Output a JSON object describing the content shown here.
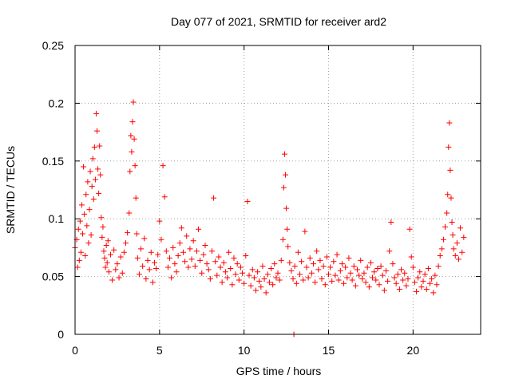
{
  "chart_data": {
    "type": "scatter",
    "title": "Day 077 of 2021, SRMTID for receiver ard2",
    "xlabel": "GPS time / hours",
    "ylabel": "SRMTID / TECUs",
    "xlim": [
      0,
      24
    ],
    "ylim": [
      0,
      0.25
    ],
    "xticks": [
      0,
      5,
      10,
      15,
      20
    ],
    "xtick_labels": [
      "0",
      "5",
      "10",
      "15",
      "20"
    ],
    "yticks": [
      0,
      0.05,
      0.1,
      0.15,
      0.2,
      0.25
    ],
    "ytick_labels": [
      "0",
      "0.05",
      "0.1",
      "0.15",
      "0.2",
      "0.25"
    ],
    "grid": true,
    "marker": "+",
    "series": [
      {
        "name": "SRMTID",
        "color": "#ff0000",
        "x": [
          0.0,
          0.1,
          0.15,
          0.2,
          0.25,
          0.3,
          0.35,
          0.4,
          0.45,
          0.5,
          0.55,
          0.6,
          0.65,
          0.7,
          0.75,
          0.8,
          0.85,
          0.9,
          0.95,
          1.0,
          1.05,
          1.1,
          1.15,
          1.2,
          1.25,
          1.3,
          1.35,
          1.4,
          1.45,
          1.5,
          1.55,
          1.6,
          1.65,
          1.7,
          1.75,
          1.8,
          1.85,
          1.9,
          1.95,
          2.0,
          2.1,
          2.2,
          2.3,
          2.4,
          2.5,
          2.6,
          2.7,
          2.8,
          2.9,
          3.0,
          3.1,
          3.2,
          3.25,
          3.3,
          3.35,
          3.4,
          3.45,
          3.5,
          3.55,
          3.6,
          3.65,
          3.7,
          3.8,
          3.9,
          4.0,
          4.1,
          4.2,
          4.3,
          4.4,
          4.5,
          4.6,
          4.7,
          4.8,
          4.9,
          5.0,
          5.1,
          5.2,
          5.3,
          5.4,
          5.5,
          5.6,
          5.7,
          5.8,
          5.9,
          6.0,
          6.1,
          6.2,
          6.3,
          6.4,
          6.5,
          6.6,
          6.7,
          6.8,
          6.9,
          7.0,
          7.1,
          7.2,
          7.3,
          7.4,
          7.5,
          7.6,
          7.7,
          7.8,
          7.9,
          8.0,
          8.1,
          8.2,
          8.3,
          8.4,
          8.5,
          8.6,
          8.7,
          8.8,
          8.9,
          9.0,
          9.1,
          9.2,
          9.3,
          9.4,
          9.5,
          9.6,
          9.7,
          9.8,
          9.9,
          10.0,
          10.1,
          10.2,
          10.3,
          10.4,
          10.5,
          10.6,
          10.7,
          10.8,
          10.9,
          11.0,
          11.1,
          11.2,
          11.3,
          11.4,
          11.5,
          11.6,
          11.7,
          11.8,
          11.9,
          12.0,
          12.1,
          12.2,
          12.3,
          12.35,
          12.4,
          12.45,
          12.5,
          12.55,
          12.6,
          12.7,
          12.8,
          12.9,
          13.0,
          13.1,
          13.2,
          13.3,
          13.4,
          13.5,
          13.6,
          13.7,
          13.8,
          13.9,
          14.0,
          14.1,
          14.2,
          14.3,
          14.4,
          14.5,
          14.6,
          14.7,
          14.8,
          14.9,
          15.0,
          15.1,
          15.2,
          15.3,
          15.4,
          15.5,
          15.6,
          15.7,
          15.8,
          15.9,
          16.0,
          16.1,
          16.2,
          16.3,
          16.4,
          16.5,
          16.6,
          16.7,
          16.8,
          16.9,
          17.0,
          17.1,
          17.2,
          17.3,
          17.4,
          17.5,
          17.6,
          17.7,
          17.8,
          17.9,
          18.0,
          18.1,
          18.2,
          18.3,
          18.4,
          18.5,
          18.6,
          18.7,
          18.8,
          18.9,
          19.0,
          19.1,
          19.2,
          19.3,
          19.4,
          19.5,
          19.6,
          19.7,
          19.8,
          19.9,
          20.0,
          20.1,
          20.2,
          20.3,
          20.4,
          20.5,
          20.6,
          20.7,
          20.8,
          20.9,
          21.0,
          21.1,
          21.2,
          21.3,
          21.4,
          21.5,
          21.6,
          21.7,
          21.8,
          21.9,
          22.0,
          22.05,
          22.1,
          22.15,
          22.2,
          22.25,
          22.3,
          22.35,
          22.4,
          22.5,
          22.6,
          22.7,
          22.8,
          22.9,
          23.0,
          12.95
        ],
        "y": [
          0.075,
          0.082,
          0.058,
          0.091,
          0.064,
          0.098,
          0.071,
          0.112,
          0.087,
          0.145,
          0.104,
          0.068,
          0.121,
          0.094,
          0.132,
          0.079,
          0.108,
          0.141,
          0.086,
          0.128,
          0.152,
          0.117,
          0.162,
          0.134,
          0.191,
          0.176,
          0.143,
          0.122,
          0.163,
          0.138,
          0.101,
          0.084,
          0.093,
          0.072,
          0.066,
          0.058,
          0.077,
          0.062,
          0.081,
          0.054,
          0.069,
          0.047,
          0.073,
          0.056,
          0.061,
          0.049,
          0.067,
          0.053,
          0.071,
          0.079,
          0.088,
          0.105,
          0.141,
          0.172,
          0.158,
          0.184,
          0.201,
          0.169,
          0.146,
          0.118,
          0.087,
          0.066,
          0.052,
          0.074,
          0.059,
          0.083,
          0.048,
          0.064,
          0.056,
          0.071,
          0.045,
          0.062,
          0.057,
          0.069,
          0.098,
          0.082,
          0.146,
          0.119,
          0.072,
          0.058,
          0.066,
          0.049,
          0.075,
          0.061,
          0.054,
          0.068,
          0.079,
          0.092,
          0.071,
          0.063,
          0.085,
          0.058,
          0.074,
          0.065,
          0.081,
          0.059,
          0.072,
          0.091,
          0.064,
          0.053,
          0.069,
          0.077,
          0.061,
          0.056,
          0.048,
          0.072,
          0.118,
          0.063,
          0.051,
          0.067,
          0.058,
          0.045,
          0.062,
          0.054,
          0.049,
          0.071,
          0.057,
          0.043,
          0.066,
          0.052,
          0.061,
          0.047,
          0.058,
          0.053,
          0.044,
          0.068,
          0.115,
          0.051,
          0.042,
          0.056,
          0.049,
          0.038,
          0.054,
          0.046,
          0.041,
          0.059,
          0.048,
          0.036,
          0.052,
          0.045,
          0.057,
          0.043,
          0.061,
          0.049,
          0.053,
          0.047,
          0.064,
          0.082,
          0.127,
          0.156,
          0.138,
          0.109,
          0.091,
          0.076,
          0.062,
          0.055,
          0.048,
          0.059,
          0.044,
          0.071,
          0.052,
          0.063,
          0.047,
          0.089,
          0.058,
          0.049,
          0.066,
          0.053,
          0.061,
          0.045,
          0.072,
          0.056,
          0.064,
          0.048,
          0.059,
          0.043,
          0.067,
          0.052,
          0.058,
          0.046,
          0.063,
          0.051,
          0.069,
          0.047,
          0.055,
          0.061,
          0.044,
          0.058,
          0.049,
          0.066,
          0.053,
          0.047,
          0.059,
          0.042,
          0.056,
          0.051,
          0.064,
          0.048,
          0.053,
          0.045,
          0.058,
          0.041,
          0.062,
          0.049,
          0.054,
          0.047,
          0.057,
          0.043,
          0.059,
          0.051,
          0.038,
          0.055,
          0.046,
          0.072,
          0.097,
          0.061,
          0.049,
          0.044,
          0.052,
          0.039,
          0.056,
          0.047,
          0.053,
          0.042,
          0.048,
          0.091,
          0.067,
          0.058,
          0.045,
          0.037,
          0.049,
          0.054,
          0.041,
          0.046,
          0.052,
          0.039,
          0.057,
          0.044,
          0.048,
          0.036,
          0.051,
          0.043,
          0.059,
          0.068,
          0.074,
          0.082,
          0.093,
          0.105,
          0.121,
          0.162,
          0.183,
          0.142,
          0.118,
          0.097,
          0.086,
          0.074,
          0.068,
          0.079,
          0.065,
          0.092,
          0.071,
          0.084,
          0.0
        ]
      }
    ]
  }
}
